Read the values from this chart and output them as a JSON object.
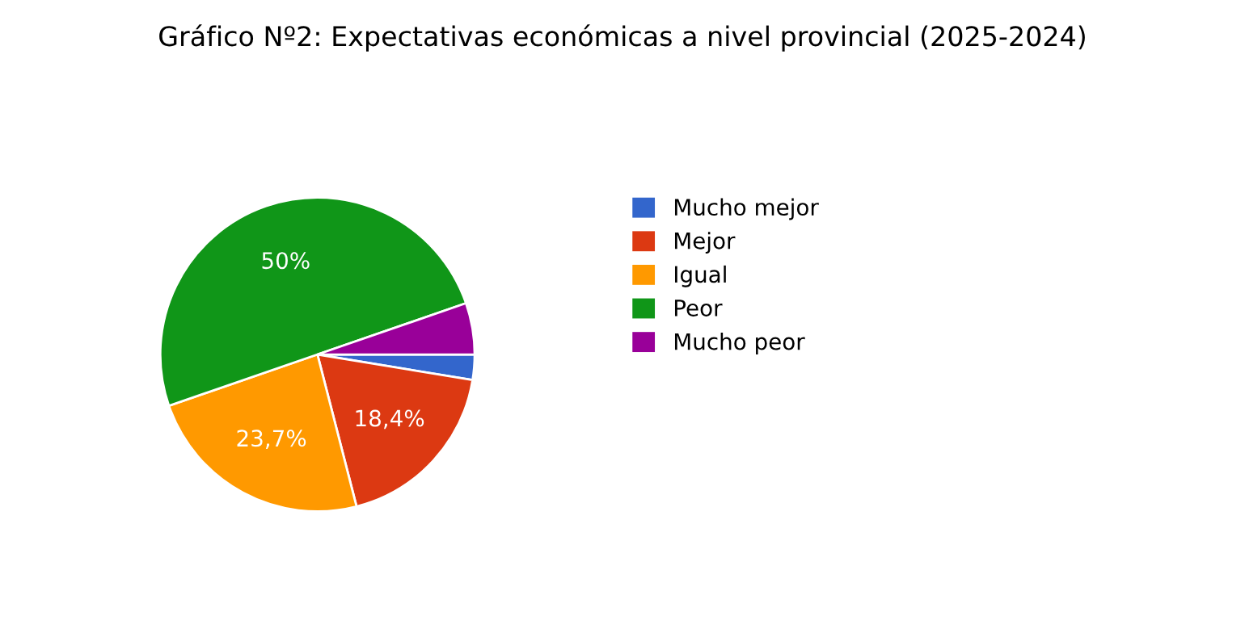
{
  "chart_data": {
    "type": "pie",
    "title": "Gráfico Nº2: Expectativas económicas a nivel provincial (2025-2024)",
    "categories": [
      "Mucho mejor",
      "Mejor",
      "Igual",
      "Peor",
      "Mucho peor"
    ],
    "values": [
      2.6,
      18.4,
      23.7,
      50,
      5.3
    ],
    "colors": [
      "#3366cc",
      "#dc3912",
      "#ff9900",
      "#109618",
      "#990099"
    ],
    "value_labels": [
      null,
      "18,4%",
      "23,7%",
      "50%",
      null
    ],
    "legend": "right"
  }
}
